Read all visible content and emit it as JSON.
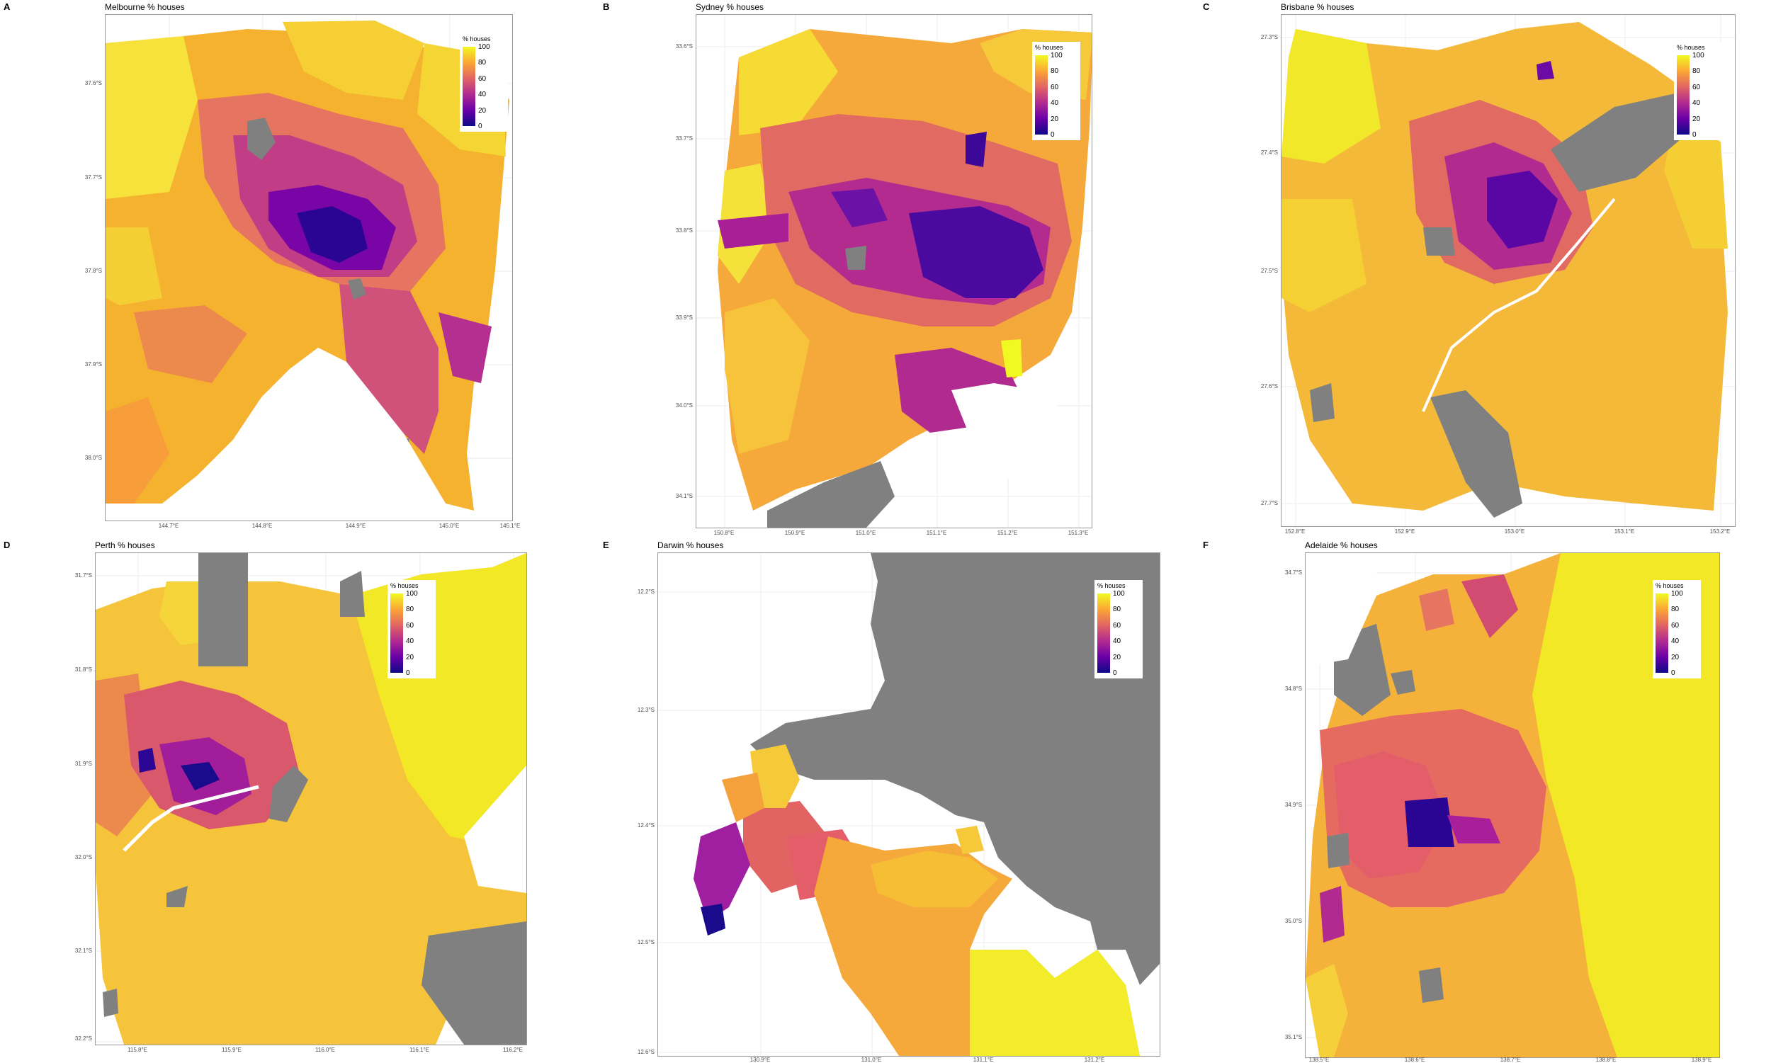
{
  "colors": {
    "missing": "#808080",
    "scale": [
      "#0d0887",
      "#6a00a8",
      "#b12a90",
      "#e16462",
      "#fca636",
      "#f0f921"
    ]
  },
  "legend": {
    "title": "% houses",
    "ticks": [
      "100",
      "80",
      "60",
      "40",
      "20",
      "0"
    ]
  },
  "panels": [
    {
      "letter": "A",
      "title": "Melbourne % houses",
      "yticks": [
        "37.6°S",
        "37.7°S",
        "37.8°S",
        "37.9°S",
        "38.0°S"
      ],
      "xticks": [
        "144.7°E",
        "144.8°E",
        "144.9°E",
        "145.0°E",
        "145.1°E"
      ]
    },
    {
      "letter": "B",
      "title": "Sydney % houses",
      "yticks": [
        "33.6°S",
        "33.7°S",
        "33.8°S",
        "33.9°S",
        "34.0°S",
        "34.1°S"
      ],
      "xticks": [
        "150.8°E",
        "150.9°E",
        "151.0°E",
        "151.1°E",
        "151.2°E",
        "151.3°E"
      ]
    },
    {
      "letter": "C",
      "title": "Brisbane % houses",
      "yticks": [
        "27.3°S",
        "27.4°S",
        "27.5°S",
        "27.6°S",
        "27.7°S"
      ],
      "xticks": [
        "152.8°E",
        "152.9°E",
        "153.0°E",
        "153.1°E",
        "153.2°E"
      ]
    },
    {
      "letter": "D",
      "title": "Perth % houses",
      "yticks": [
        "31.7°S",
        "31.8°S",
        "31.9°S",
        "32.0°S",
        "32.1°S",
        "32.2°S"
      ],
      "xticks": [
        "115.8°E",
        "115.9°E",
        "116.0°E",
        "116.1°E",
        "116.2°E"
      ]
    },
    {
      "letter": "E",
      "title": "Darwin % houses",
      "yticks": [
        "12.2°S",
        "12.3°S",
        "12.4°S",
        "12.5°S",
        "12.6°S"
      ],
      "xticks": [
        "130.9°E",
        "131.0°E",
        "131.1°E",
        "131.2°E"
      ]
    },
    {
      "letter": "F",
      "title": "Adelaide % houses",
      "yticks": [
        "34.7°S",
        "34.8°S",
        "34.9°S",
        "35.0°S",
        "35.1°S"
      ],
      "xticks": [
        "138.5°E",
        "138.6°E",
        "138.7°E",
        "138.8°E",
        "138.9°E"
      ]
    }
  ]
}
